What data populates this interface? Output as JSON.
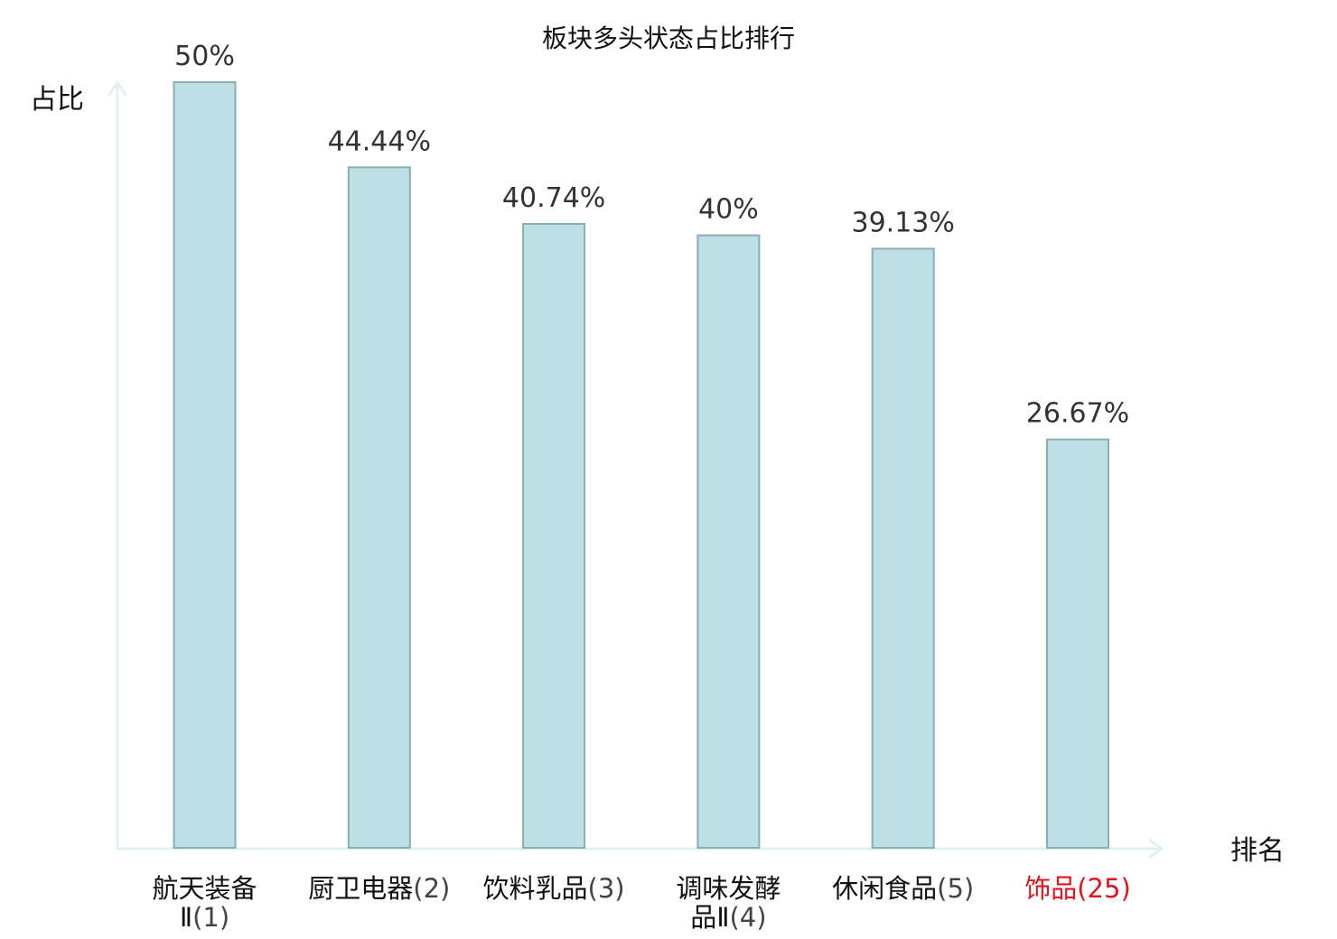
{
  "chart_data": {
    "type": "bar",
    "title": "板块多头状态占比排行",
    "ylabel": "占比",
    "xlabel": "排名",
    "ylim": [
      0,
      50
    ],
    "grid": false,
    "categories": [
      {
        "name": "航天装备Ⅱ",
        "rank": "(1)",
        "lines": [
          "航天装备",
          "Ⅱ(1)"
        ],
        "highlight": false
      },
      {
        "name": "厨卫电器",
        "rank": "(2)",
        "lines": [
          "厨卫电器(2)"
        ],
        "highlight": false
      },
      {
        "name": "饮料乳品",
        "rank": "(3)",
        "lines": [
          "饮料乳品(3)"
        ],
        "highlight": false
      },
      {
        "name": "调味发酵品Ⅱ",
        "rank": "(4)",
        "lines": [
          "调味发酵",
          "品Ⅱ(4)"
        ],
        "highlight": false
      },
      {
        "name": "休闲食品",
        "rank": "(5)",
        "lines": [
          "休闲食品(5)"
        ],
        "highlight": false
      },
      {
        "name": "饰品",
        "rank": "(25)",
        "lines": [
          "饰品(25)"
        ],
        "highlight": true
      }
    ],
    "values": [
      50,
      44.44,
      40.74,
      40,
      39.13,
      26.67
    ],
    "value_labels": [
      "50%",
      "44.44%",
      "40.74%",
      "40%",
      "39.13%",
      "26.67%"
    ],
    "colors": {
      "bar_fill": "#bce0e3",
      "bar_stroke": "#8aaeb1",
      "axis": "#dff2ef",
      "highlight_text": "#e0141e"
    }
  }
}
